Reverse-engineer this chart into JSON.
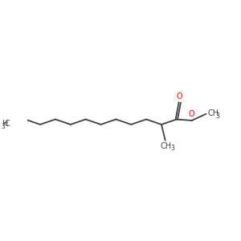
{
  "background_color": "#ffffff",
  "bond_color": "#404040",
  "oxygen_color": "#ff0000",
  "text_color": "#404040",
  "figsize": [
    3.0,
    3.0
  ],
  "dpi": 100,
  "font_size": 7.0,
  "font_size_sub": 5.5,
  "lw": 1.3,
  "xlim": [
    0,
    10
  ],
  "ylim": [
    0,
    10
  ],
  "bl": 0.72,
  "bv": 0.22,
  "c1x": 7.1,
  "c1y": 5.05
}
